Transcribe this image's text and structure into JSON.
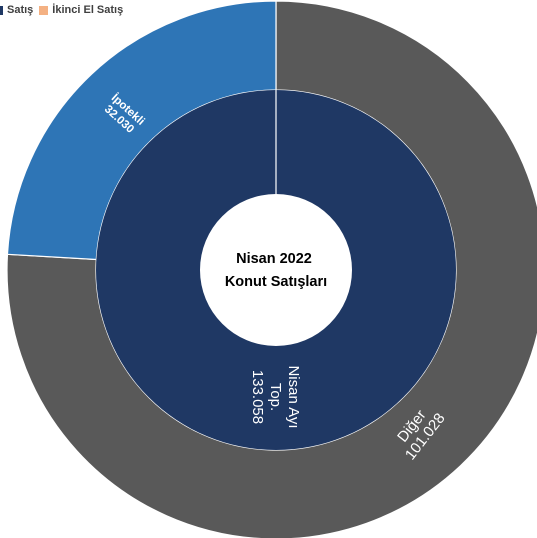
{
  "legend": {
    "items": [
      {
        "label": "Satış",
        "color": "#1f3864"
      },
      {
        "label": "İkinci El Satış",
        "color": "#f4b183"
      }
    ]
  },
  "chart_data": {
    "type": "pie",
    "subtype": "sunburst",
    "center_label": [
      "Nisan 2022",
      "Konut Satışları"
    ],
    "legend_position": "top-left",
    "inner_ring": [
      {
        "label_lines": [
          "Nisan Ayı",
          "Top.",
          "133.058"
        ],
        "value": 133058,
        "color": "#1f3864"
      }
    ],
    "outer_ring": [
      {
        "label_lines": [
          "Diğer",
          "101.028"
        ],
        "value": 101028,
        "color": "#595959"
      },
      {
        "label_lines": [
          "İpotekli",
          "32.030"
        ],
        "value": 32030,
        "color": "#2e75b6"
      }
    ]
  }
}
